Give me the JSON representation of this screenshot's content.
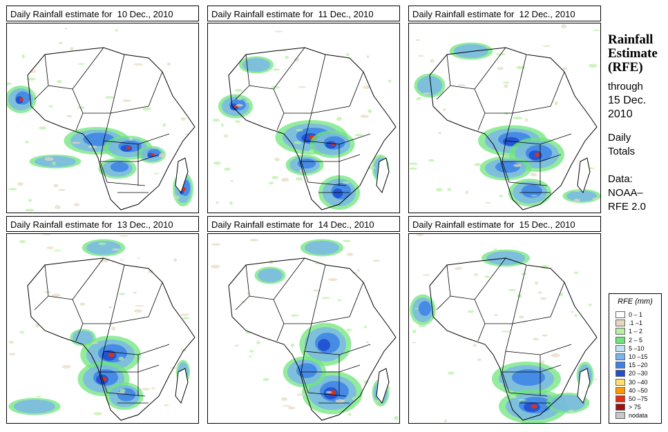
{
  "panels": [
    {
      "title": "Daily Rainfall estimate for  10 Dec., 2010",
      "variant": 0
    },
    {
      "title": "Daily Rainfall estimate for  11 Dec., 2010",
      "variant": 1
    },
    {
      "title": "Daily Rainfall estimate for  12 Dec., 2010",
      "variant": 2
    },
    {
      "title": "Daily Rainfall estimate for  13 Dec., 2010",
      "variant": 3
    },
    {
      "title": "Daily Rainfall estimate for  14 Dec., 2010",
      "variant": 4
    },
    {
      "title": "Daily Rainfall estimate for  15 Dec., 2010",
      "variant": 5
    }
  ],
  "sidebar": {
    "title_line1": "Rainfall",
    "title_line2": "Estimate",
    "title_line3": "(RFE)",
    "through": "through",
    "date_line1": "15 Dec.",
    "date_line2": "2010",
    "daily": "Daily",
    "totals": "Totals",
    "data_label": "Data:",
    "source_line1": "NOAA–",
    "source_line2": "RFE 2.0"
  },
  "legend": {
    "title": "RFE (mm)",
    "items": [
      {
        "label": "0 – 1",
        "color": "#ffffff"
      },
      {
        "label": ".1 –1",
        "color": "#e6d8bf"
      },
      {
        "label": "1 – 2",
        "color": "#b7f0a0"
      },
      {
        "label": "2 – 5",
        "color": "#6fe67b"
      },
      {
        "label": "5 –10",
        "color": "#bfe2f2"
      },
      {
        "label": "10 –15",
        "color": "#79b4ec"
      },
      {
        "label": "15 –20",
        "color": "#3c82e6"
      },
      {
        "label": "20 –30",
        "color": "#1f4fd0"
      },
      {
        "label": "30 –40",
        "color": "#ffe070"
      },
      {
        "label": "40 –50",
        "color": "#ff9a00"
      },
      {
        "label": "50 –75",
        "color": "#e03010"
      },
      {
        "label": "> 75",
        "color": "#a01010"
      },
      {
        "label": "nodata",
        "color": "#c8c8c8"
      }
    ]
  }
}
